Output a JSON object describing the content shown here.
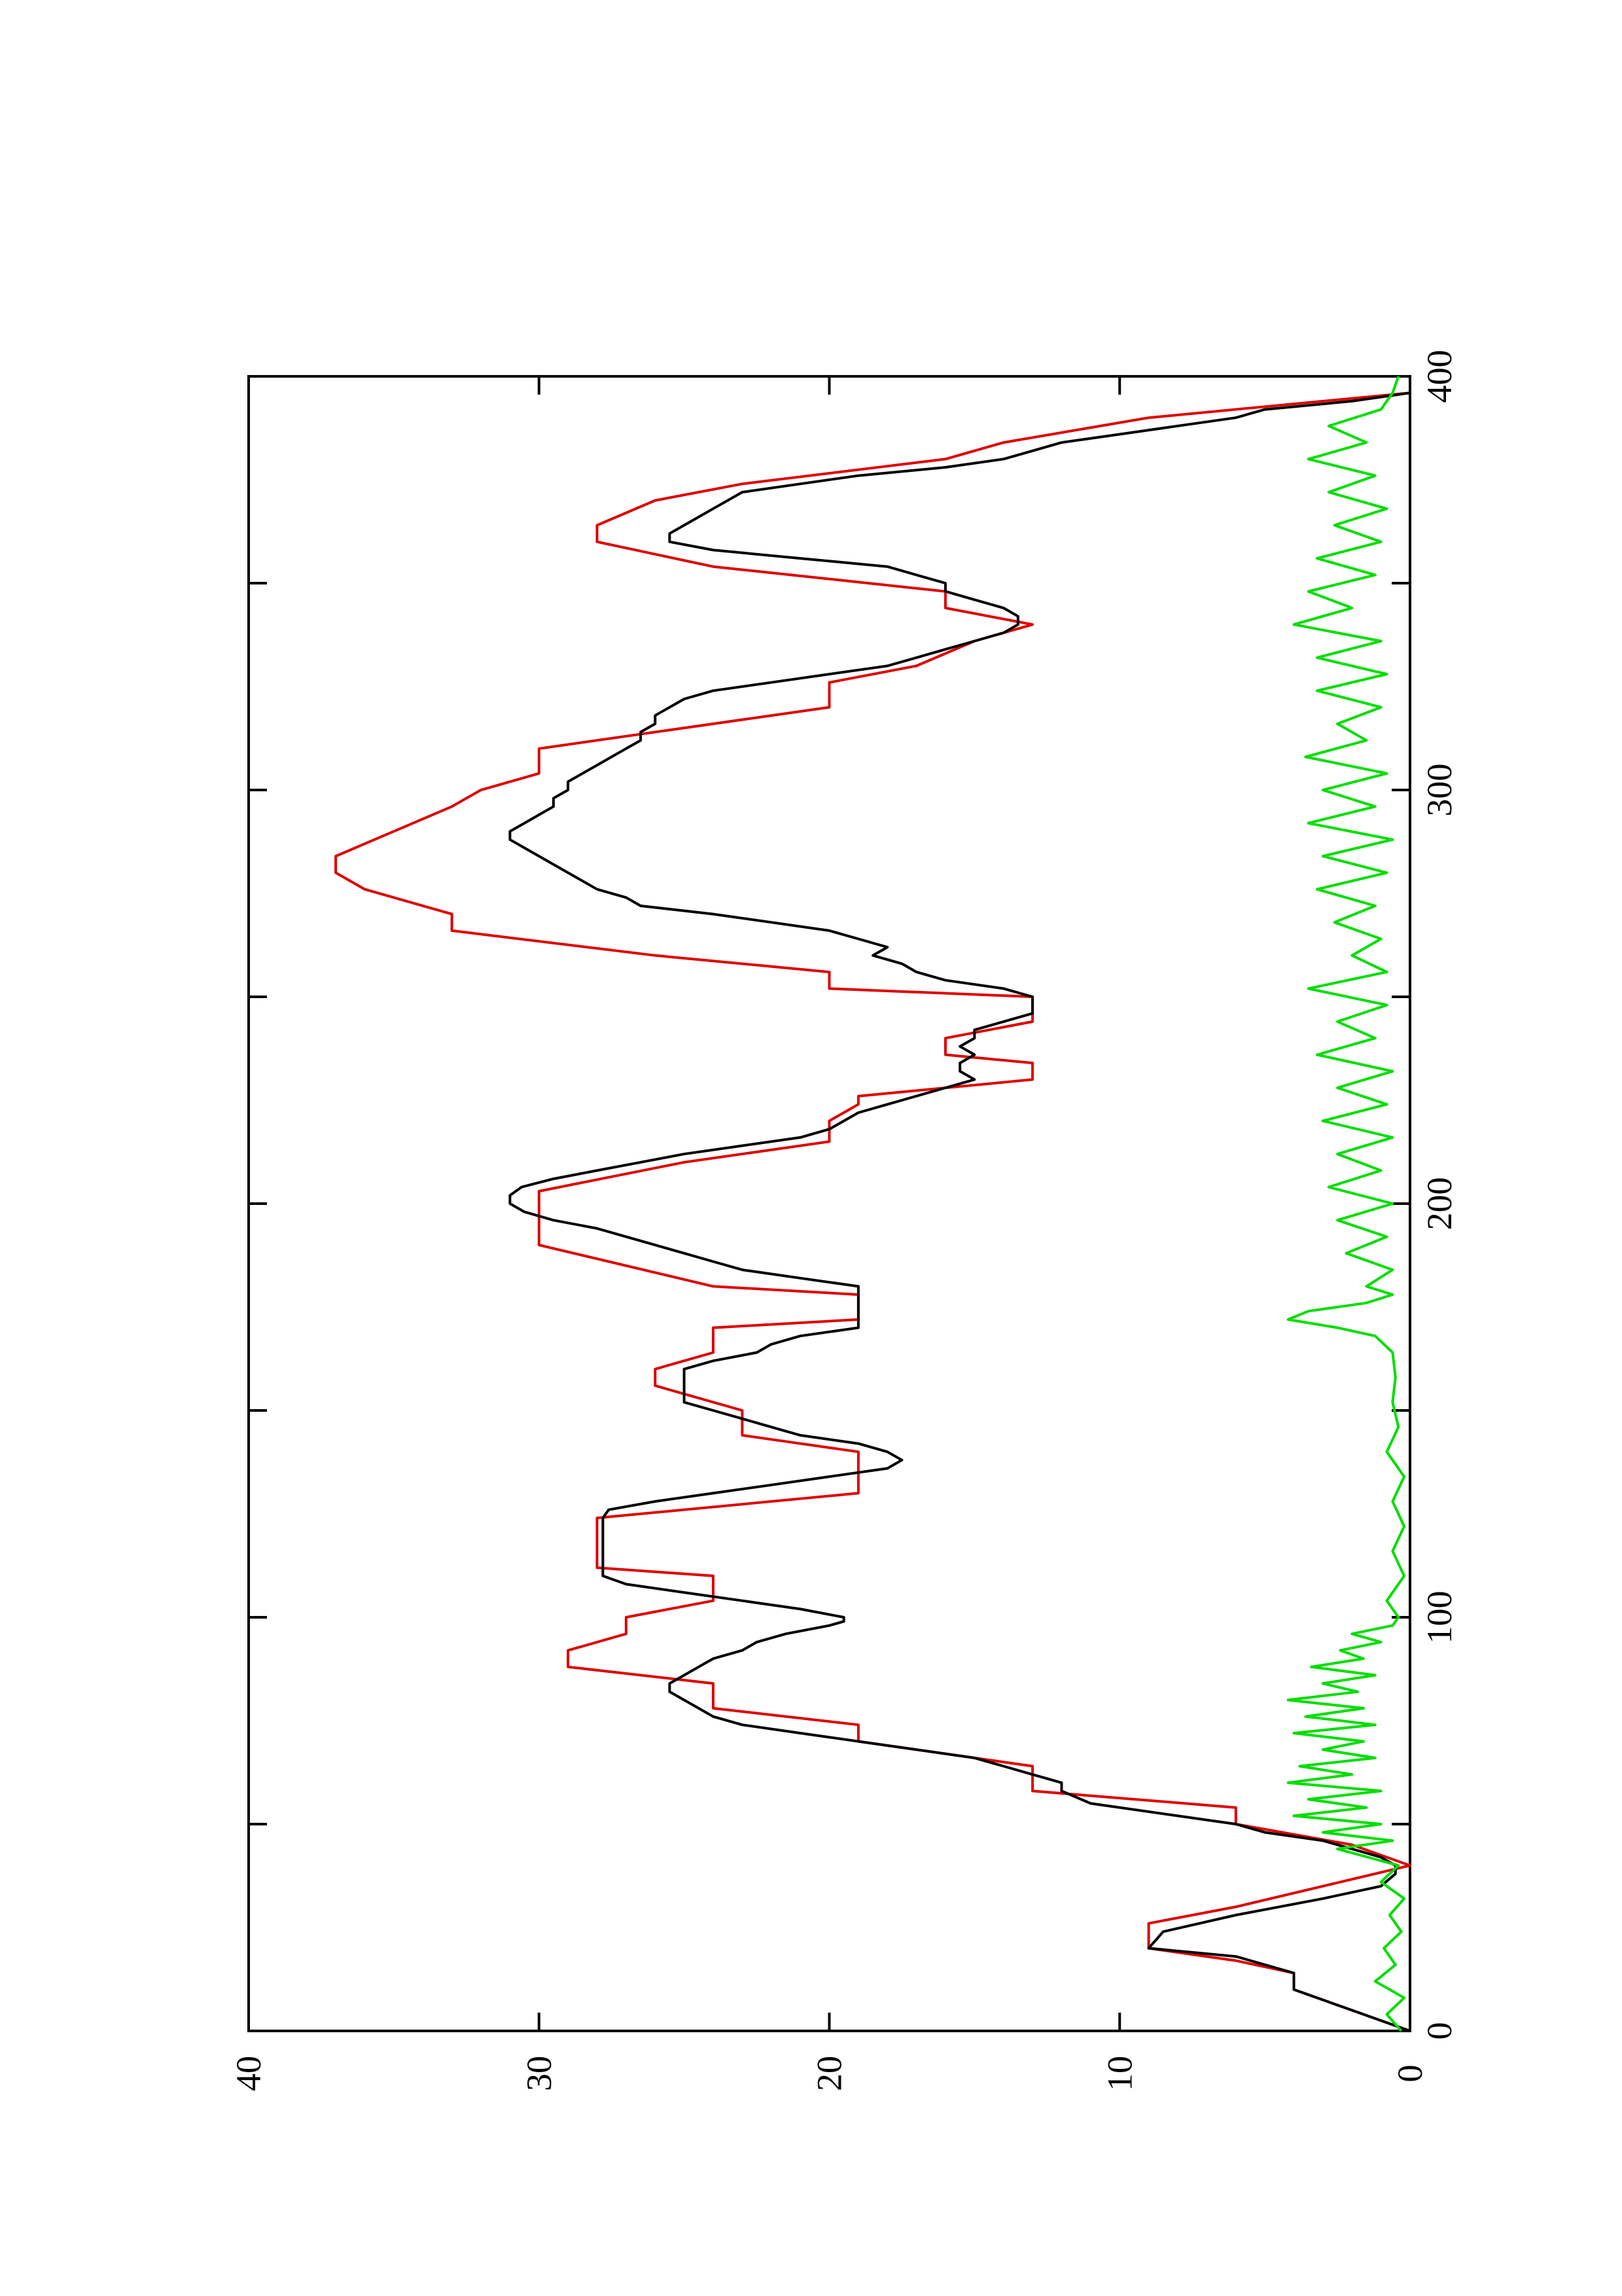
{
  "chart_data": {
    "type": "line",
    "orientation": "rotated-90-ccw",
    "title": "",
    "xlabel": "",
    "ylabel": "",
    "xlim": [
      0,
      400
    ],
    "ylim": [
      0,
      40
    ],
    "x_ticks": [
      0,
      100,
      200,
      300,
      400
    ],
    "x_minor_ticks": [
      50,
      150,
      250,
      350
    ],
    "y_ticks": [
      0,
      10,
      20,
      30,
      40
    ],
    "x_tick_labels": [
      "0",
      "100",
      "200",
      "300",
      "400"
    ],
    "y_tick_labels": [
      "0",
      "10",
      "20",
      "30",
      "40"
    ],
    "grid": false,
    "legend": "none",
    "series": [
      {
        "color": "#dd0000",
        "x": [
          0,
          5,
          10,
          14,
          17,
          20,
          26,
          30,
          35,
          40,
          45,
          50,
          54,
          58,
          64,
          70,
          74,
          78,
          84,
          88,
          92,
          96,
          100,
          104,
          110,
          112,
          116,
          118,
          124,
          130,
          136,
          140,
          144,
          150,
          156,
          160,
          164,
          170,
          172,
          178,
          180,
          190,
          200,
          203,
          210,
          215,
          220,
          224,
          226,
          230,
          234,
          236,
          240,
          244,
          250,
          252,
          256,
          260,
          266,
          270,
          276,
          280,
          284,
          290,
          296,
          300,
          304,
          310,
          320,
          326,
          330,
          336,
          340,
          344,
          348,
          354,
          360,
          364,
          370,
          374,
          380,
          384,
          390,
          396
        ],
        "y": [
          0,
          2,
          4,
          4,
          6,
          9,
          9,
          6,
          3,
          0,
          2,
          6,
          6,
          13,
          13,
          19,
          19,
          24,
          24,
          29,
          29,
          27,
          27,
          24,
          24,
          28,
          28,
          28,
          28,
          19,
          19,
          19,
          23,
          23,
          26,
          26,
          24,
          24,
          19,
          19,
          24,
          30,
          30,
          30,
          25,
          20,
          20,
          19,
          19,
          13,
          13,
          16,
          16,
          13,
          13,
          20,
          20,
          26,
          33,
          33,
          36,
          37,
          37,
          35,
          33,
          32,
          30,
          30,
          20,
          20,
          17,
          15,
          13,
          16,
          16,
          24,
          28,
          28,
          26,
          23,
          16,
          14,
          9,
          0
        ]
      },
      {
        "color": "#000000",
        "x": [
          0,
          5,
          10,
          14,
          18,
          20,
          24,
          28,
          32,
          35,
          38,
          40,
          42,
          44,
          46,
          48,
          50,
          52,
          55,
          58,
          60,
          62,
          64,
          66,
          68,
          70,
          72,
          74,
          76,
          78,
          80,
          82,
          84,
          86,
          88,
          90,
          92,
          94,
          96,
          98,
          99,
          100,
          102,
          104,
          106,
          108,
          110,
          112,
          114,
          116,
          118,
          120,
          122,
          124,
          126,
          128,
          130,
          132,
          134,
          136,
          138,
          140,
          142,
          144,
          146,
          148,
          150,
          152,
          154,
          156,
          158,
          160,
          162,
          164,
          166,
          168,
          170,
          172,
          174,
          176,
          178,
          180,
          182,
          184,
          186,
          188,
          190,
          192,
          194,
          196,
          198,
          200,
          202,
          204,
          206,
          208,
          210,
          212,
          214,
          216,
          218,
          220,
          222,
          224,
          226,
          228,
          230,
          232,
          234,
          236,
          238,
          240,
          242,
          244,
          246,
          248,
          250,
          252,
          254,
          256,
          258,
          260,
          262,
          264,
          266,
          268,
          270,
          272,
          274,
          276,
          278,
          280,
          282,
          284,
          286,
          288,
          290,
          292,
          294,
          296,
          298,
          300,
          302,
          304,
          306,
          308,
          310,
          312,
          314,
          316,
          318,
          320,
          322,
          324,
          326,
          328,
          330,
          332,
          334,
          336,
          338,
          340,
          342,
          344,
          346,
          348,
          350,
          352,
          354,
          356,
          358,
          360,
          362,
          364,
          366,
          368,
          370,
          372,
          374,
          376,
          378,
          380,
          382,
          384,
          386,
          388,
          390,
          392,
          394,
          396
        ],
        "y": [
          0,
          2,
          4,
          4,
          6,
          9,
          8.5,
          6,
          3,
          1,
          0.5,
          0.5,
          1,
          2,
          3,
          5,
          6,
          8,
          11,
          12,
          12,
          13,
          14,
          15,
          17,
          19,
          21,
          23,
          24,
          24.5,
          25,
          25.5,
          25.5,
          25,
          24.5,
          24,
          23,
          22.5,
          21.5,
          20,
          19.5,
          19.5,
          21,
          23,
          25,
          27,
          27.8,
          27.8,
          27.8,
          27.8,
          27.8,
          27.8,
          27.8,
          27.8,
          27.6,
          26,
          24,
          22,
          20,
          18,
          17.5,
          18,
          19,
          21,
          22,
          23,
          24,
          25,
          25,
          25,
          25,
          25,
          24,
          22.5,
          22,
          21,
          19,
          19,
          19,
          19,
          19,
          19,
          21,
          23,
          24,
          25,
          26,
          27,
          28,
          29.5,
          30.5,
          31,
          31,
          30.6,
          29.5,
          28,
          26.5,
          25,
          23,
          21,
          20,
          19.5,
          19,
          18,
          17,
          16,
          15,
          15.5,
          15.5,
          15,
          15.5,
          15,
          15,
          14,
          13,
          13,
          13,
          14,
          16,
          17,
          17.5,
          18.5,
          18,
          19,
          20,
          22,
          24,
          26.5,
          27,
          28,
          28.5,
          29,
          29.5,
          30,
          30.5,
          31,
          31,
          30.5,
          30,
          29.5,
          29.5,
          29,
          29,
          28.5,
          28,
          27.5,
          27,
          26.5,
          26.5,
          26,
          26,
          25.5,
          25,
          24,
          22,
          20,
          18,
          17,
          16,
          15,
          14,
          13.5,
          13.5,
          14,
          15,
          16,
          16,
          17,
          18,
          21,
          24,
          25.5,
          25.5,
          25,
          24.5,
          24,
          23.5,
          23,
          21,
          19,
          16,
          14,
          13,
          12,
          10,
          8,
          6,
          5,
          2,
          0
        ]
      },
      {
        "color": "#00dd00",
        "x": [
          0,
          4,
          8,
          12,
          16,
          20,
          24,
          28,
          32,
          36,
          40,
          44,
          46,
          48,
          50,
          52,
          54,
          56,
          58,
          60,
          62,
          64,
          66,
          68,
          70,
          72,
          74,
          76,
          78,
          80,
          82,
          84,
          86,
          88,
          90,
          92,
          94,
          96,
          98,
          100,
          104,
          110,
          116,
          122,
          128,
          134,
          140,
          146,
          152,
          158,
          164,
          168,
          170,
          172,
          174,
          176,
          178,
          180,
          184,
          188,
          192,
          196,
          200,
          204,
          208,
          212,
          216,
          220,
          224,
          228,
          232,
          236,
          240,
          244,
          248,
          252,
          256,
          260,
          264,
          268,
          272,
          276,
          280,
          284,
          288,
          292,
          296,
          300,
          304,
          308,
          312,
          316,
          320,
          324,
          328,
          332,
          336,
          340,
          344,
          348,
          352,
          356,
          360,
          364,
          368,
          372,
          376,
          380,
          384,
          388,
          392,
          396,
          400
        ],
        "y": [
          0.3,
          0.8,
          0.2,
          1.2,
          0.5,
          0.9,
          0.3,
          0.7,
          0.2,
          1,
          0.4,
          2.5,
          0.6,
          3,
          1,
          4,
          1.5,
          3.5,
          1,
          4.2,
          2,
          3.8,
          1.2,
          3,
          1.6,
          4,
          1.2,
          3.6,
          1.6,
          4.2,
          1.8,
          3,
          1.2,
          3.4,
          1.6,
          2.4,
          1,
          2,
          0.6,
          0.4,
          0.8,
          0.2,
          0.6,
          0.2,
          0.6,
          0.2,
          0.8,
          0.4,
          0.6,
          0.5,
          0.6,
          1.2,
          2.5,
          4.2,
          3.5,
          1.5,
          0.6,
          1.5,
          0.6,
          2.2,
          0.8,
          2.5,
          0.6,
          2.8,
          1,
          2.5,
          0.6,
          3,
          0.8,
          2.5,
          0.6,
          3.2,
          1.2,
          2.5,
          0.8,
          3.5,
          0.8,
          2,
          1,
          2.6,
          1.2,
          3.2,
          0.8,
          3,
          0.6,
          3.5,
          1.2,
          3,
          0.8,
          3.6,
          1.5,
          2.5,
          1,
          3.2,
          0.8,
          3.2,
          1,
          4,
          2,
          3.5,
          1.2,
          3.2,
          1,
          2.6,
          0.8,
          2.8,
          1.2,
          3.5,
          1.5,
          2.8,
          1,
          0.6,
          0.4
        ]
      }
    ]
  }
}
